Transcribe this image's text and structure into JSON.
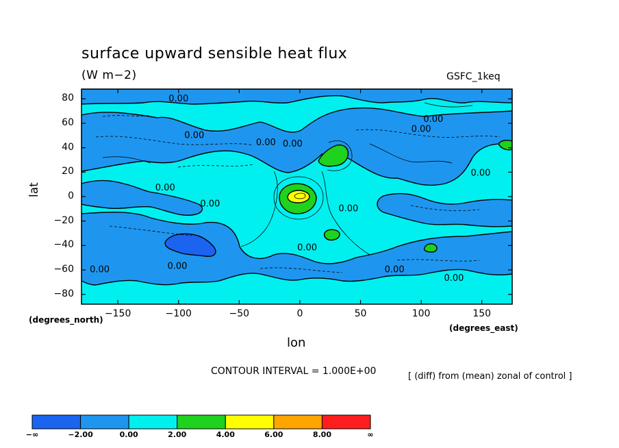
{
  "chart_data": {
    "type": "contour",
    "title": "surface upward sensible heat flux",
    "units": "(W m−2)",
    "model": "GSFC_1keq",
    "xlabel": "lon",
    "ylabel": "lat",
    "x_unit": "(degrees_east)",
    "y_unit": "(degrees_north)",
    "xlim": [
      -180,
      175
    ],
    "ylim": [
      -88,
      88
    ],
    "x_ticks": [
      "−150",
      "−100",
      "−50",
      "0",
      "50",
      "100",
      "150"
    ],
    "x_tick_values": [
      -150,
      -100,
      -50,
      0,
      50,
      100,
      150
    ],
    "y_ticks": [
      "80",
      "60",
      "40",
      "20",
      "0",
      "−20",
      "−40",
      "−60",
      "−80"
    ],
    "y_tick_values": [
      80,
      60,
      40,
      20,
      0,
      -20,
      -40,
      -60,
      -80
    ],
    "contour_interval": "CONTOUR INTERVAL = 1.000E+00",
    "note": "[ (diff) from (mean) zonal of control ]",
    "contour_labels": [
      {
        "text": "0.00",
        "lon": -100,
        "lat": 78
      },
      {
        "text": "0.00",
        "lon": -87,
        "lat": 48
      },
      {
        "text": "0.00",
        "lon": -28,
        "lat": 42
      },
      {
        "text": "0.00",
        "lon": -6,
        "lat": 41
      },
      {
        "text": "0.00",
        "lon": 100,
        "lat": 53
      },
      {
        "text": "0.00",
        "lon": 110,
        "lat": 61
      },
      {
        "text": "0.00",
        "lon": 149,
        "lat": 17
      },
      {
        "text": "0.00",
        "lon": -111,
        "lat": 5
      },
      {
        "text": "0.00",
        "lon": -74,
        "lat": -8
      },
      {
        "text": "0.00",
        "lon": 40,
        "lat": -12
      },
      {
        "text": "0.00",
        "lon": 6,
        "lat": -44
      },
      {
        "text": "0.00",
        "lon": -101,
        "lat": -59
      },
      {
        "text": "0.00",
        "lon": -165,
        "lat": -62
      },
      {
        "text": "0.00",
        "lon": 78,
        "lat": -62
      },
      {
        "text": "0.00",
        "lon": 127,
        "lat": -69
      }
    ],
    "regions": [
      {
        "level": "0 to 2",
        "lon": [
          -180,
          175
        ],
        "lat": [
          -88,
          88
        ]
      },
      {
        "level": "-2 to 0",
        "note": "broad negative bands in mid-latitudes"
      },
      {
        "level": "-4 to -2",
        "lon": [
          -110,
          -80
        ],
        "lat": [
          -48,
          -35
        ]
      },
      {
        "level": "2 to 4",
        "lon": [
          15,
          45
        ],
        "lat": [
          25,
          42
        ]
      },
      {
        "level": "2 to 4",
        "lon": [
          -20,
          20
        ],
        "lat": [
          -10,
          12
        ]
      },
      {
        "level": "4 to 6",
        "lon": [
          -8,
          10
        ],
        "lat": [
          -3,
          5
        ]
      },
      {
        "level": "2 to 4",
        "lon": [
          25,
          35
        ],
        "lat": [
          -35,
          -28
        ]
      },
      {
        "level": "2 to 4",
        "lon": [
          100,
          112
        ],
        "lat": [
          -45,
          -38
        ]
      },
      {
        "level": "2 to 4",
        "lon": [
          165,
          175
        ],
        "lat": [
          38,
          45
        ]
      }
    ],
    "colorbar": {
      "labels": [
        "−∞",
        "−2.00",
        "0.00",
        "2.00",
        "4.00",
        "6.00",
        "8.00",
        "∞"
      ],
      "colors": [
        "#1a64f0",
        "#1e96f0",
        "#00f0f0",
        "#1ed21e",
        "#ffff00",
        "#ffa500",
        "#ff1e1e"
      ]
    }
  }
}
